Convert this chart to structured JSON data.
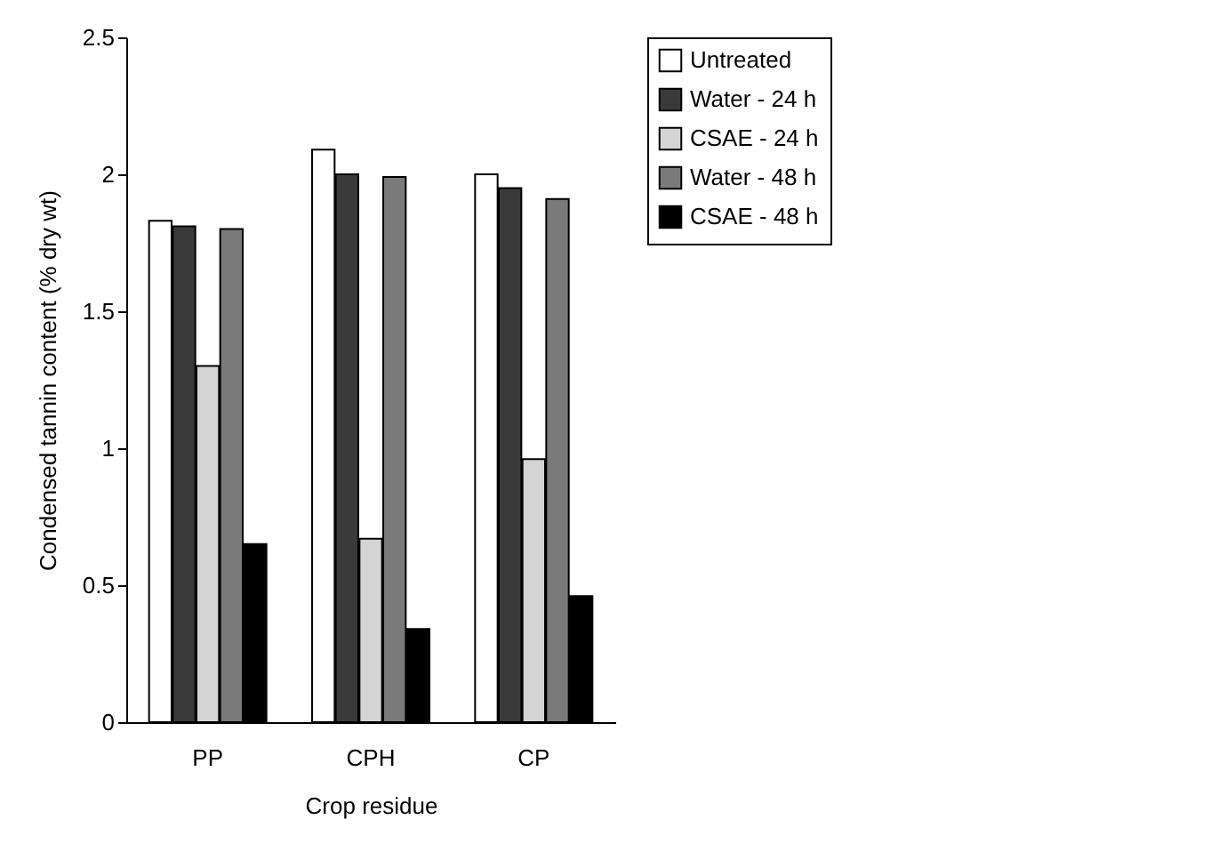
{
  "chart_data": {
    "type": "bar",
    "xlabel": "Crop residue",
    "ylabel": "Condensed tannin content (% dry wt)",
    "categories": [
      "PP",
      "CPH",
      "CP"
    ],
    "series": [
      {
        "name": "Untreated",
        "color": "#ffffff",
        "values": [
          1.83,
          2.09,
          2.0
        ]
      },
      {
        "name": "Water - 24 h",
        "color": "#3a3a3a",
        "values": [
          1.81,
          2.0,
          1.95
        ]
      },
      {
        "name": "CSAE - 24 h",
        "color": "#d4d4d4",
        "values": [
          1.3,
          0.67,
          0.96
        ]
      },
      {
        "name": "Water - 48 h",
        "color": "#7a7a7a",
        "values": [
          1.8,
          1.99,
          1.91
        ]
      },
      {
        "name": "CSAE - 48 h",
        "color": "#000000",
        "values": [
          0.65,
          0.34,
          0.46
        ]
      }
    ],
    "ylim": [
      0,
      2.5
    ],
    "yticks": [
      0,
      0.5,
      1,
      1.5,
      2,
      2.5
    ],
    "grid": false,
    "legend": "right"
  }
}
